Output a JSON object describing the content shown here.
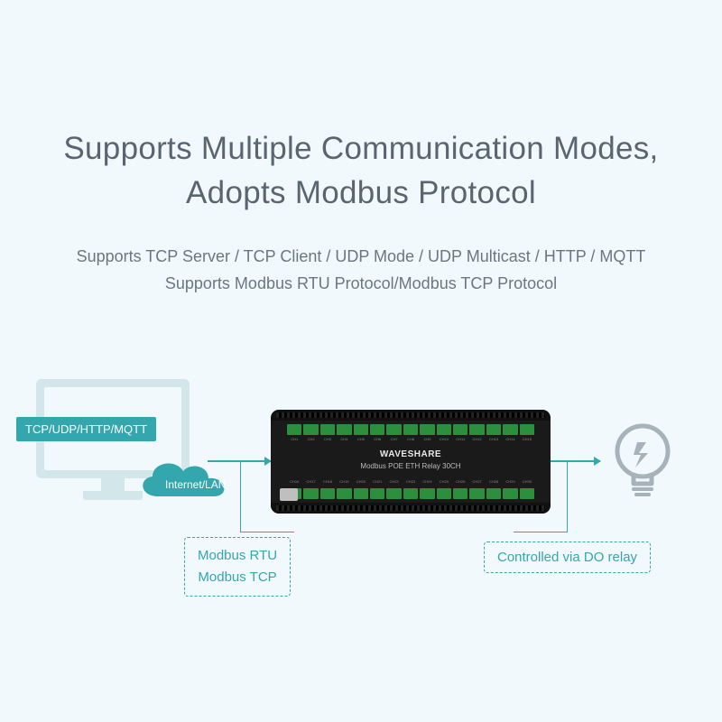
{
  "colors": {
    "background": "#f1f9fd",
    "title": "#5b6570",
    "subtitle": "#6c7680",
    "accent": "#33a6ae",
    "cloud": "#33a6ae",
    "computer_body": "#d3e7ea",
    "device_body": "#1a1a1a",
    "terminal": "#2b8f3e",
    "bulb_stroke": "#a7b2bb"
  },
  "title": {
    "line1": "Supports Multiple Communication Modes,",
    "line2": "Adopts Modbus Protocol",
    "fontsize": 35
  },
  "subtitle": {
    "line1": "Supports TCP Server / TCP Client / UDP Mode / UDP Multicast / HTTP / MQTT",
    "line2": "Supports Modbus RTU Protocol/Modbus TCP Protocol",
    "fontsize": 18
  },
  "computer": {
    "protocol_label": "TCP/UDP/HTTP/MQTT",
    "cloud_label": "Internet/LAN"
  },
  "device": {
    "brand": "WAVESHARE",
    "model": "Modbus POE ETH Relay 30CH",
    "channels": 30
  },
  "callouts": {
    "modbus_line1": "Modbus RTU",
    "modbus_line2": "Modbus TCP",
    "controlled": "Controlled via DO relay"
  }
}
